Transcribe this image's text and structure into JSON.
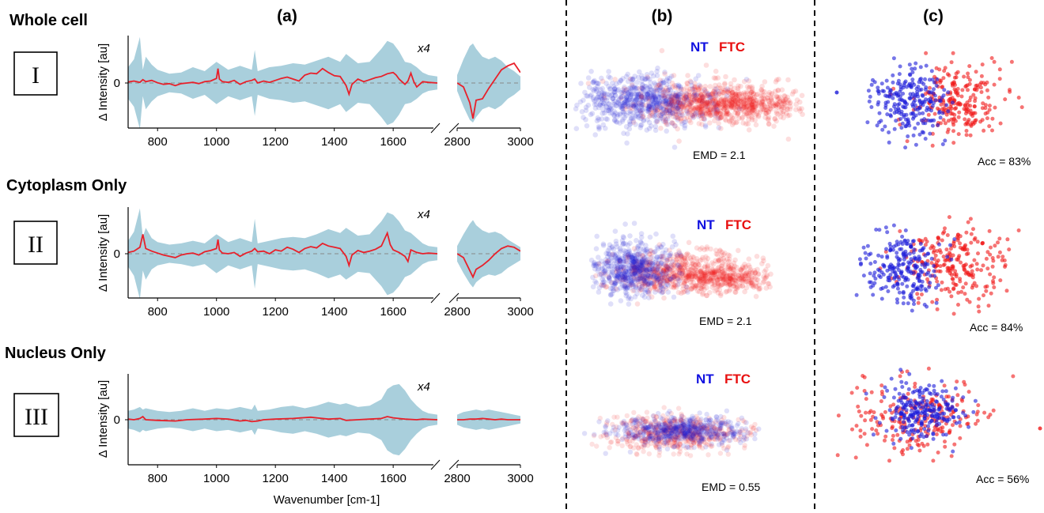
{
  "panels": {
    "a": "(a)",
    "b": "(b)",
    "c": "(c)"
  },
  "labels": {
    "ylabel": "Δ Intensity [au]",
    "xlabel": "Wavenumber [cm-1]",
    "zero": "0",
    "multiplier": "x4",
    "nt": "NT",
    "ftc": "FTC"
  },
  "rows": [
    {
      "title": "Whole cell",
      "roman": "I",
      "emd": "EMD = 2.1",
      "acc": "Acc = 83%"
    },
    {
      "title": "Cytoplasm Only",
      "roman": "II",
      "emd": "EMD = 2.1",
      "acc": "Acc = 84%"
    },
    {
      "title": "Nucleus Only",
      "roman": "III",
      "emd": "EMD = 0.55",
      "acc": "Acc = 56%"
    }
  ],
  "colors": {
    "mean_line": "#e8202a",
    "band": "#a9cfdc",
    "nt": "#1a1ad8",
    "ftc": "#f01818"
  },
  "chart_data": [
    {
      "type": "area",
      "title": "(a) Whole cell",
      "xlabel": "Wavenumber [cm-1]",
      "ylabel": "Δ Intensity [au]",
      "x_ticks_left": [
        800,
        1000,
        1200,
        1400,
        1600
      ],
      "x_ticks_right": [
        2800,
        3000
      ],
      "y_ticks": [
        0
      ],
      "annotation": "x4",
      "series": [
        {
          "name": "mean",
          "x": [
            700,
            720,
            740,
            750,
            760,
            780,
            800,
            820,
            840,
            860,
            880,
            900,
            920,
            940,
            960,
            980,
            1000,
            1005,
            1010,
            1020,
            1040,
            1060,
            1080,
            1100,
            1120,
            1130,
            1140,
            1160,
            1180,
            1200,
            1220,
            1240,
            1260,
            1280,
            1300,
            1320,
            1340,
            1360,
            1380,
            1400,
            1420,
            1440,
            1450,
            1460,
            1480,
            1500,
            1520,
            1540,
            1560,
            1580,
            1600,
            1610,
            1620,
            1640,
            1650,
            1660,
            1670,
            1680,
            1700,
            1720,
            1750
          ],
          "y": [
            0.08,
            0.15,
            0.05,
            0.25,
            0.1,
            0.2,
            0.02,
            -0.1,
            -0.05,
            -0.2,
            -0.05,
            0.0,
            0.05,
            -0.05,
            0.1,
            0.15,
            0.35,
            1.1,
            0.3,
            0.1,
            0.05,
            0.2,
            -0.1,
            0.1,
            0.2,
            0.3,
            0.0,
            0.15,
            0.05,
            0.2,
            0.35,
            0.45,
            0.3,
            0.15,
            0.6,
            0.75,
            0.7,
            1.1,
            0.8,
            0.55,
            0.5,
            -0.2,
            -0.85,
            -0.1,
            0.3,
            0.1,
            0.25,
            0.4,
            0.5,
            0.7,
            0.8,
            0.6,
            0.3,
            -0.1,
            0.15,
            0.75,
            0.1,
            -0.3,
            0.1,
            0.05,
            0.0
          ]
        },
        {
          "name": "band",
          "x": [
            700,
            720,
            740,
            750,
            760,
            780,
            800,
            840,
            880,
            920,
            960,
            1000,
            1040,
            1080,
            1120,
            1130,
            1140,
            1180,
            1220,
            1260,
            1300,
            1340,
            1380,
            1420,
            1440,
            1480,
            1520,
            1560,
            1580,
            1600,
            1620,
            1640,
            1660,
            1680,
            1700,
            1720,
            1750
          ],
          "y": [
            1.2,
            1.8,
            3.5,
            1.0,
            2.0,
            1.4,
            1.0,
            0.7,
            0.8,
            1.2,
            0.9,
            1.6,
            1.0,
            1.3,
            1.0,
            2.5,
            0.9,
            1.2,
            1.3,
            1.5,
            1.4,
            1.7,
            2.0,
            1.6,
            2.2,
            1.5,
            1.6,
            2.6,
            3.2,
            3.0,
            2.4,
            1.6,
            1.5,
            1.2,
            0.8,
            0.6,
            0.5
          ]
        },
        {
          "name": "mean_high",
          "x": [
            2800,
            2820,
            2840,
            2850,
            2860,
            2880,
            2900,
            2920,
            2940,
            2960,
            2980,
            3000
          ],
          "y": [
            0.0,
            -0.3,
            -1.5,
            -2.7,
            -1.3,
            -1.2,
            -0.4,
            0.3,
            1.0,
            1.3,
            1.5,
            0.8
          ]
        },
        {
          "name": "band_high",
          "x": [
            2800,
            2820,
            2840,
            2850,
            2860,
            2880,
            2900,
            2920,
            2940,
            2960,
            2980,
            3000
          ],
          "y": [
            0.6,
            1.8,
            2.8,
            3.0,
            2.6,
            2.0,
            1.8,
            2.0,
            1.7,
            1.2,
            0.9,
            0.5
          ]
        }
      ]
    },
    {
      "type": "area",
      "title": "(a) Cytoplasm Only",
      "xlabel": "Wavenumber [cm-1]",
      "ylabel": "Δ Intensity [au]",
      "x_ticks_left": [
        800,
        1000,
        1200,
        1400,
        1600
      ],
      "x_ticks_right": [
        2800,
        3000
      ],
      "y_ticks": [
        0
      ],
      "annotation": "x4",
      "series": [
        {
          "name": "mean",
          "x": [
            700,
            720,
            740,
            750,
            760,
            780,
            800,
            820,
            840,
            860,
            880,
            900,
            920,
            940,
            960,
            980,
            1000,
            1005,
            1010,
            1020,
            1040,
            1060,
            1080,
            1100,
            1120,
            1130,
            1140,
            1160,
            1180,
            1200,
            1220,
            1240,
            1260,
            1280,
            1300,
            1320,
            1340,
            1360,
            1380,
            1400,
            1420,
            1440,
            1450,
            1460,
            1480,
            1500,
            1520,
            1540,
            1560,
            1580,
            1590,
            1600,
            1620,
            1640,
            1650,
            1660,
            1680,
            1700,
            1720,
            1750
          ],
          "y": [
            0.1,
            0.2,
            0.5,
            1.5,
            0.4,
            0.2,
            0.05,
            -0.1,
            -0.2,
            -0.3,
            -0.1,
            0.0,
            0.05,
            -0.1,
            0.15,
            0.25,
            0.4,
            1.1,
            0.3,
            0.05,
            0.0,
            0.1,
            -0.2,
            0.05,
            0.2,
            0.4,
            0.15,
            0.2,
            0.0,
            0.3,
            0.2,
            0.5,
            0.35,
            0.1,
            0.4,
            0.55,
            0.45,
            0.8,
            0.6,
            0.5,
            0.4,
            -0.2,
            -0.9,
            -0.1,
            0.25,
            0.1,
            0.2,
            0.35,
            0.6,
            1.6,
            0.7,
            0.3,
            0.1,
            -0.2,
            -0.6,
            0.3,
            0.1,
            0.0,
            0.05,
            0.0
          ]
        },
        {
          "name": "band",
          "x": [
            700,
            720,
            740,
            750,
            760,
            780,
            800,
            840,
            880,
            920,
            960,
            1000,
            1040,
            1080,
            1120,
            1130,
            1140,
            1180,
            1220,
            1260,
            1300,
            1340,
            1380,
            1420,
            1440,
            1480,
            1520,
            1560,
            1580,
            1600,
            1620,
            1640,
            1660,
            1680,
            1700,
            1720,
            1750
          ],
          "y": [
            1.0,
            1.7,
            3.5,
            1.3,
            2.0,
            1.2,
            0.9,
            0.7,
            0.8,
            1.0,
            0.8,
            1.5,
            0.9,
            1.2,
            0.9,
            2.7,
            0.8,
            1.0,
            1.2,
            1.3,
            1.2,
            1.5,
            1.9,
            1.6,
            2.0,
            1.4,
            1.5,
            2.5,
            3.2,
            3.0,
            2.5,
            1.8,
            1.6,
            1.2,
            0.8,
            0.6,
            0.5
          ]
        },
        {
          "name": "mean_high",
          "x": [
            2800,
            2820,
            2840,
            2850,
            2860,
            2880,
            2900,
            2920,
            2940,
            2960,
            2980,
            3000
          ],
          "y": [
            0.0,
            -0.3,
            -1.3,
            -1.8,
            -1.2,
            -0.9,
            -0.5,
            0.0,
            0.4,
            0.6,
            0.5,
            0.2
          ]
        },
        {
          "name": "band_high",
          "x": [
            2800,
            2820,
            2840,
            2850,
            2860,
            2880,
            2900,
            2920,
            2940,
            2960,
            2980,
            3000
          ],
          "y": [
            0.6,
            1.5,
            2.3,
            2.6,
            2.2,
            1.8,
            1.6,
            1.7,
            1.5,
            1.1,
            0.8,
            0.5
          ]
        }
      ]
    },
    {
      "type": "area",
      "title": "(a) Nucleus Only",
      "xlabel": "Wavenumber [cm-1]",
      "ylabel": "Δ Intensity [au]",
      "x_ticks_left": [
        800,
        1000,
        1200,
        1400,
        1600
      ],
      "x_ticks_right": [
        2800,
        3000
      ],
      "y_ticks": [
        0
      ],
      "annotation": "x4",
      "series": [
        {
          "name": "mean",
          "x": [
            700,
            720,
            740,
            750,
            760,
            800,
            860,
            900,
            960,
            1000,
            1040,
            1080,
            1100,
            1120,
            1140,
            1160,
            1200,
            1260,
            1320,
            1340,
            1380,
            1420,
            1440,
            1480,
            1520,
            1560,
            1580,
            1600,
            1640,
            1680,
            1700,
            1750
          ],
          "y": [
            0.05,
            0.0,
            0.1,
            0.25,
            0.0,
            -0.05,
            -0.1,
            0.0,
            0.05,
            0.1,
            0.05,
            -0.1,
            -0.05,
            -0.15,
            -0.1,
            0.0,
            0.05,
            0.1,
            0.2,
            0.15,
            0.05,
            0.1,
            -0.05,
            0.0,
            0.05,
            0.1,
            0.25,
            0.15,
            0.05,
            0.0,
            0.05,
            0.0
          ]
        },
        {
          "name": "band",
          "x": [
            700,
            720,
            740,
            750,
            760,
            780,
            800,
            840,
            880,
            920,
            960,
            1000,
            1040,
            1080,
            1120,
            1130,
            1140,
            1180,
            1220,
            1260,
            1300,
            1340,
            1380,
            1420,
            1440,
            1480,
            1520,
            1560,
            1580,
            1600,
            1620,
            1640,
            1660,
            1680,
            1700,
            1720,
            1750
          ],
          "y": [
            0.7,
            0.8,
            1.0,
            0.8,
            0.9,
            0.8,
            0.7,
            0.6,
            0.7,
            0.9,
            0.7,
            0.9,
            0.8,
            1.0,
            0.8,
            1.2,
            0.7,
            0.8,
            1.0,
            1.1,
            0.9,
            1.1,
            1.4,
            1.2,
            1.3,
            1.0,
            1.1,
            1.6,
            2.4,
            2.7,
            2.8,
            2.3,
            1.6,
            1.1,
            0.7,
            0.5,
            0.4
          ]
        },
        {
          "name": "mean_high",
          "x": [
            2800,
            2820,
            2840,
            2860,
            2880,
            2900,
            2920,
            2940,
            2960,
            2980,
            3000
          ],
          "y": [
            0.0,
            0.0,
            0.05,
            0.05,
            0.1,
            0.05,
            0.0,
            0.05,
            0.0,
            0.0,
            0.0
          ]
        },
        {
          "name": "band_high",
          "x": [
            2800,
            2820,
            2840,
            2860,
            2880,
            2900,
            2920,
            2940,
            2960,
            2980,
            3000
          ],
          "y": [
            0.4,
            0.6,
            0.7,
            0.8,
            0.7,
            0.8,
            0.7,
            0.6,
            0.5,
            0.4,
            0.3
          ]
        }
      ]
    },
    {
      "type": "scatter",
      "title": "(b) Whole cell",
      "series": [
        {
          "name": "NT"
        },
        {
          "name": "FTC"
        }
      ],
      "annotation": "EMD = 2.1"
    },
    {
      "type": "scatter",
      "title": "(b) Cytoplasm Only",
      "series": [
        {
          "name": "NT"
        },
        {
          "name": "FTC"
        }
      ],
      "annotation": "EMD = 2.1"
    },
    {
      "type": "scatter",
      "title": "(b) Nucleus Only",
      "series": [
        {
          "name": "NT"
        },
        {
          "name": "FTC"
        }
      ],
      "annotation": "EMD = 0.55"
    },
    {
      "type": "scatter",
      "title": "(c) Whole cell",
      "series": [
        {
          "name": "NT"
        },
        {
          "name": "FTC"
        }
      ],
      "annotation": "Acc = 83%"
    },
    {
      "type": "scatter",
      "title": "(c) Cytoplasm Only",
      "series": [
        {
          "name": "NT"
        },
        {
          "name": "FTC"
        }
      ],
      "annotation": "Acc = 84%"
    },
    {
      "type": "scatter",
      "title": "(c) Nucleus Only",
      "series": [
        {
          "name": "NT"
        },
        {
          "name": "FTC"
        }
      ],
      "annotation": "Acc = 56%"
    }
  ]
}
